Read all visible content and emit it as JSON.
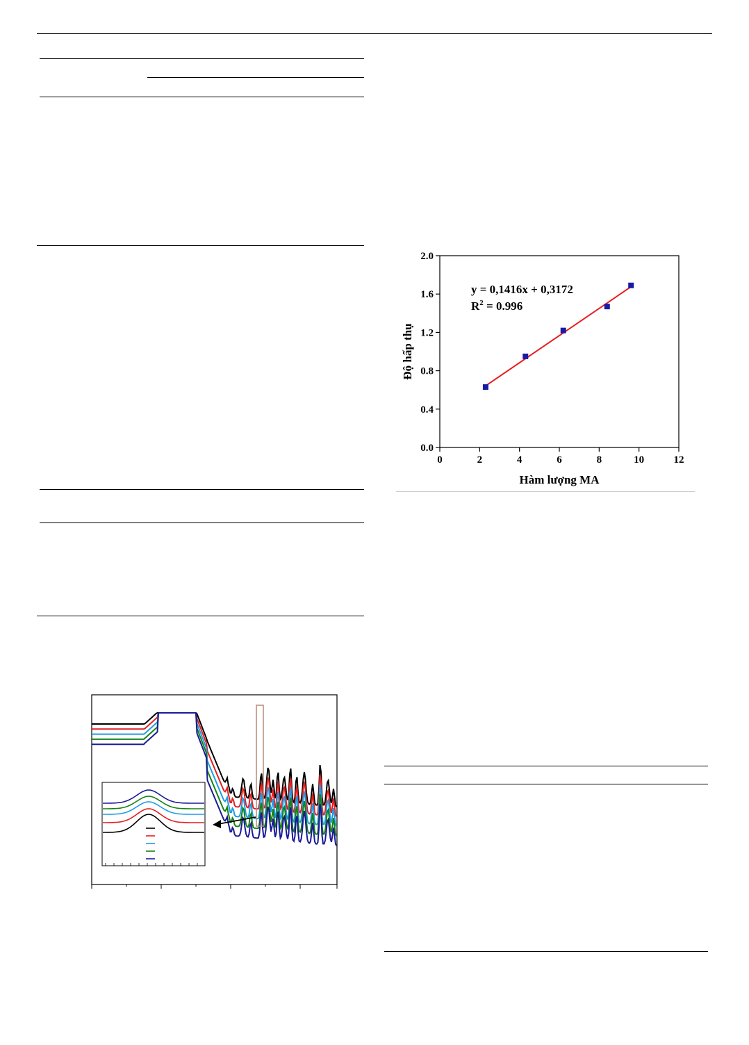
{
  "chart_data": [
    {
      "type": "scatter",
      "title": "",
      "xlabel": "Hàm lượng MA",
      "ylabel": "Độ hấp thụ",
      "xlim": [
        0,
        12
      ],
      "ylim": [
        0.0,
        2.0
      ],
      "x_ticks": [
        "0",
        "2",
        "4",
        "6",
        "8",
        "10",
        "12"
      ],
      "y_ticks": [
        "0.0",
        "0.4",
        "0.8",
        "1.2",
        "1.6",
        "2.0"
      ],
      "series": [
        {
          "x": [
            2.3,
            4.3,
            6.2,
            8.4,
            9.6
          ],
          "y": [
            0.63,
            0.95,
            1.22,
            1.47,
            1.69
          ],
          "color": "#1a1aa6",
          "marker": "square"
        }
      ],
      "fit_line": {
        "slope": 0.1416,
        "intercept": 0.3172,
        "x_range": [
          2.3,
          9.6
        ],
        "color": "#e61e1e"
      },
      "annotation_equation": "y = 0,1416x + 0,3172",
      "annotation_r2_prefix": "R",
      "annotation_r2_sup": "2",
      "annotation_r2_value": " = 0.996",
      "grid": false
    },
    {
      "type": "line",
      "title": "",
      "xlabel": "",
      "ylabel": "",
      "series_colors": [
        "#000000",
        "#e61e1e",
        "#1e9be6",
        "#148214",
        "#1a1a99"
      ],
      "inset": {
        "arrow": true,
        "highlight_box_color": "#b48c78"
      }
    }
  ]
}
